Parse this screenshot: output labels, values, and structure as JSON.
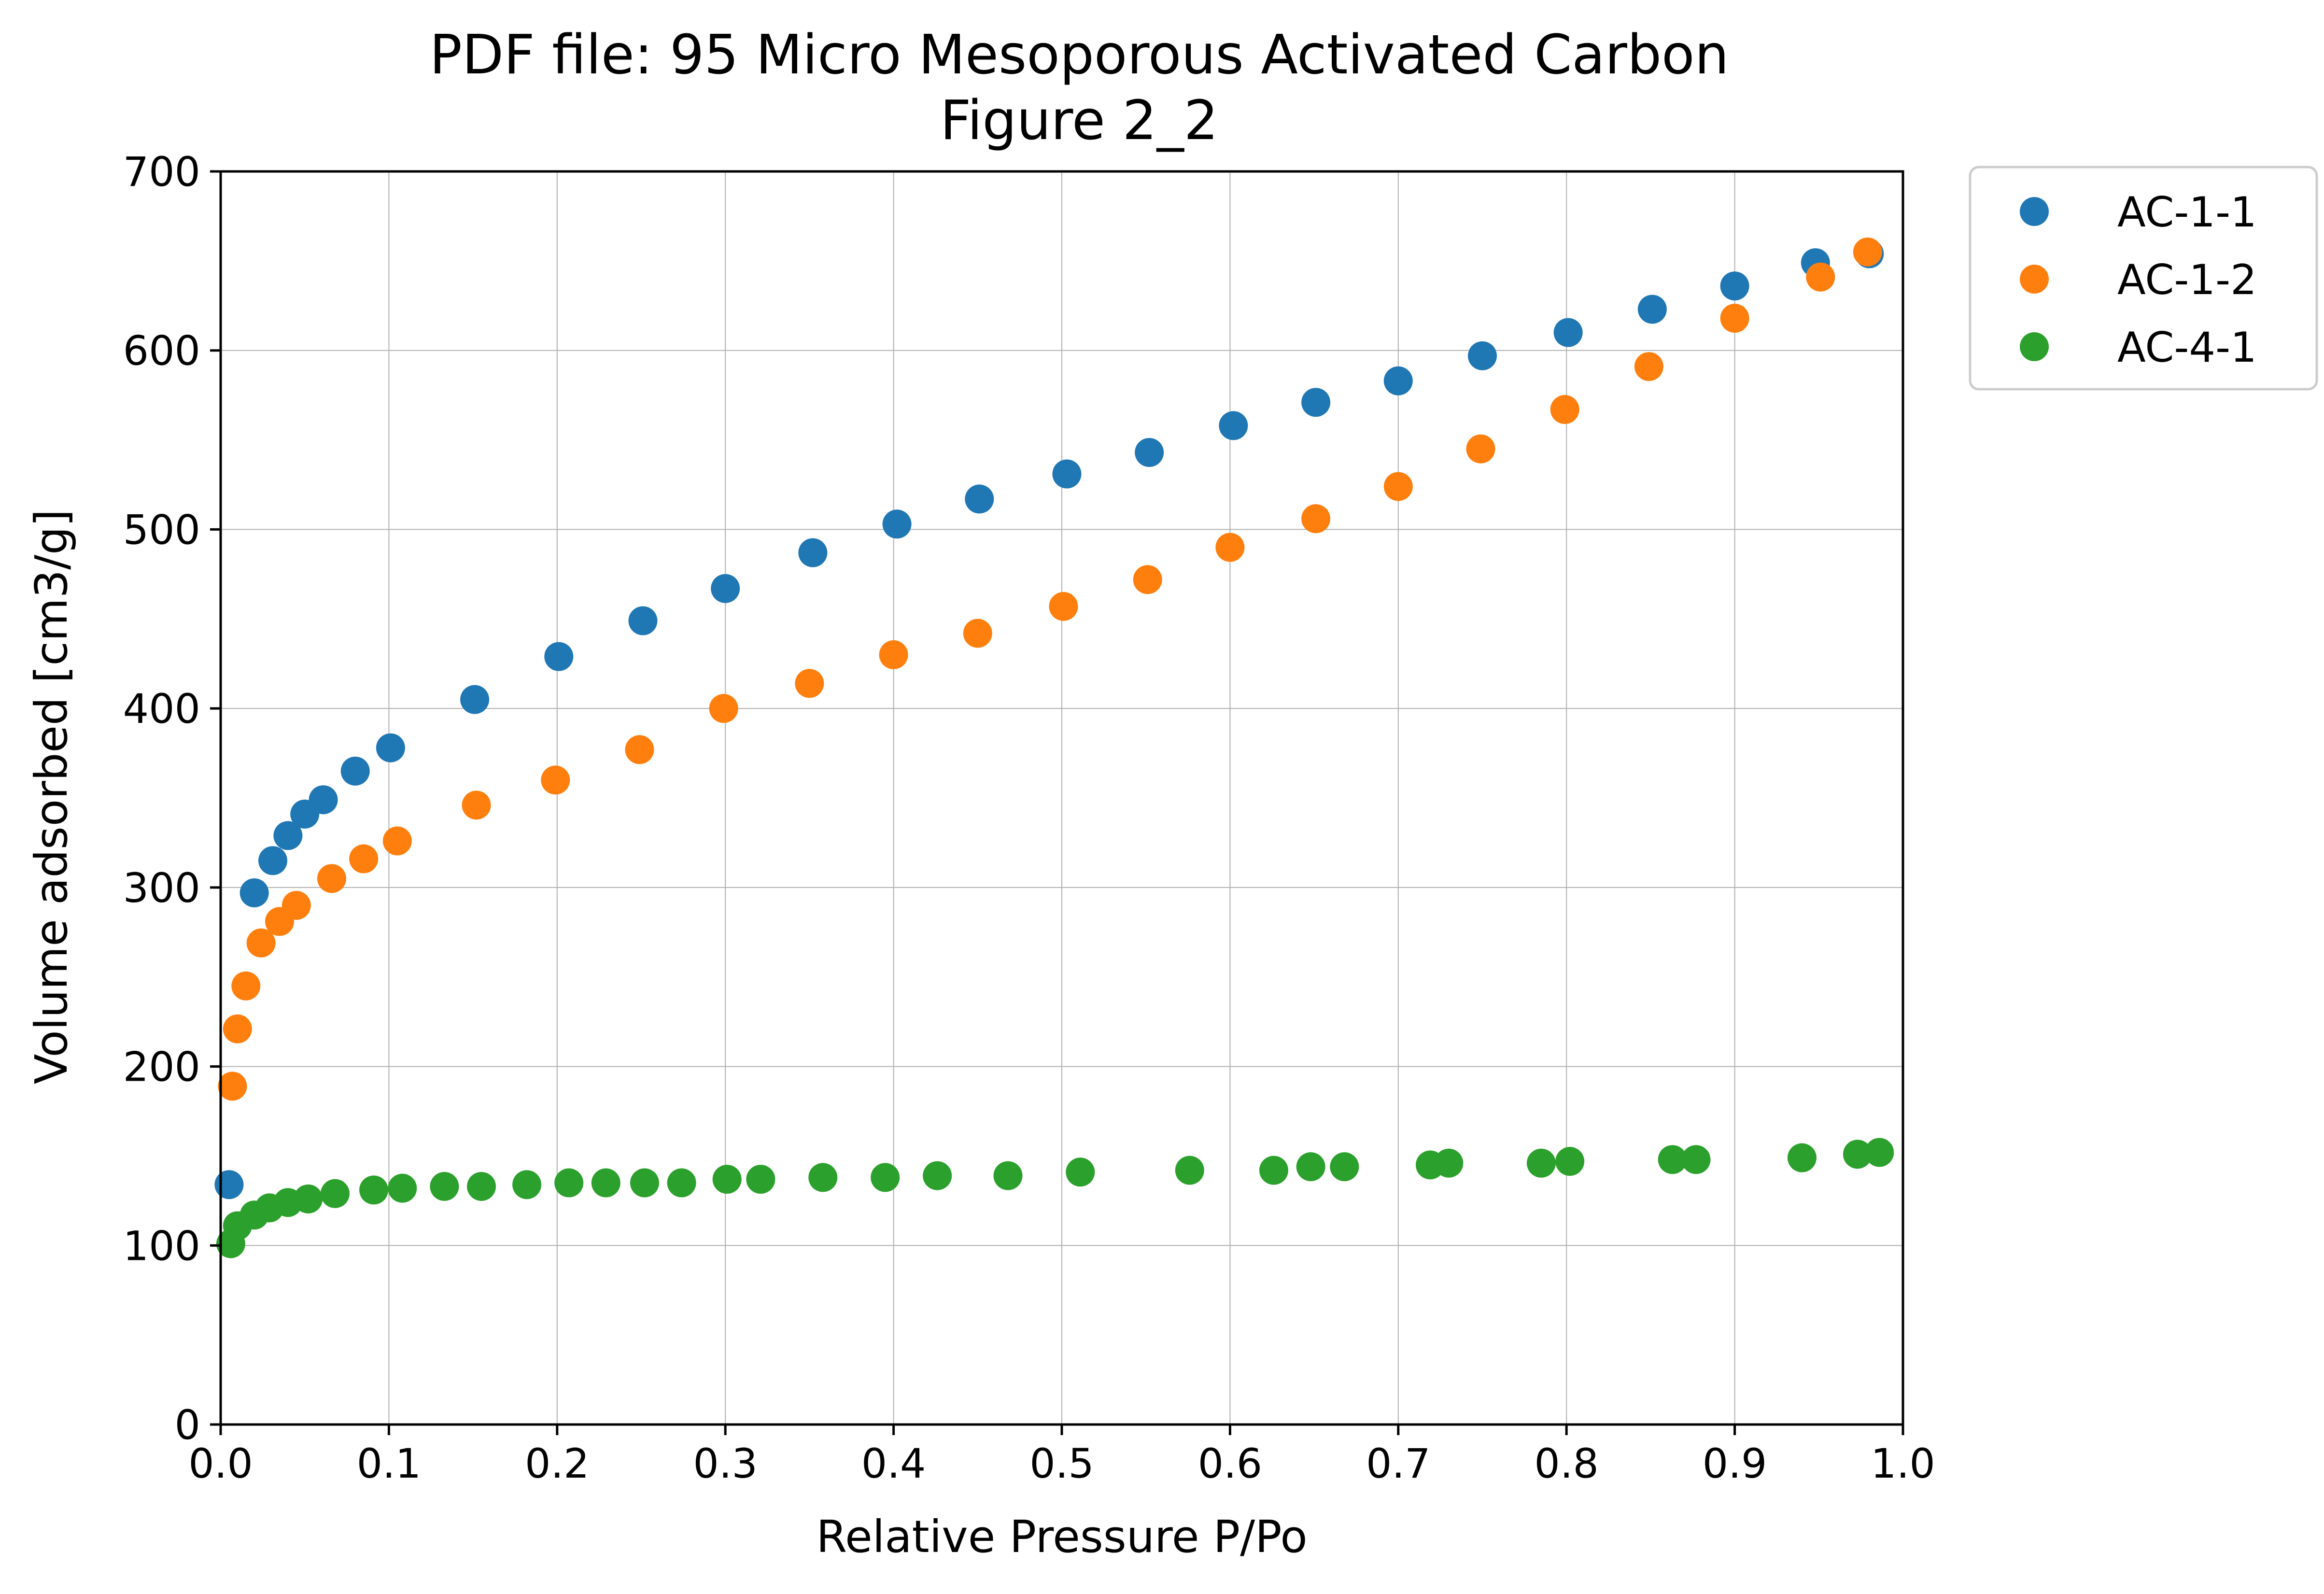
{
  "chart_data": {
    "type": "scatter",
    "title": "PDF file: 95 Micro Mesoporous Activated Carbon",
    "subtitle": "Figure 2_2",
    "xlabel": "Relative Pressure P/Po",
    "ylabel": "Volume adsorbed [cm3/g]",
    "xlim": [
      0.0,
      1.0
    ],
    "ylim": [
      0,
      700
    ],
    "xticks": [
      "0.0",
      "0.1",
      "0.2",
      "0.3",
      "0.4",
      "0.5",
      "0.6",
      "0.7",
      "0.8",
      "0.9",
      "1.0"
    ],
    "yticks": [
      "0",
      "100",
      "200",
      "300",
      "400",
      "500",
      "600",
      "700"
    ],
    "grid": true,
    "legend_position": "outside-top-right",
    "series": [
      {
        "name": "AC-1-1",
        "color": "#1f77b4",
        "x": [
          0.005,
          0.02,
          0.031,
          0.04,
          0.05,
          0.061,
          0.08,
          0.101,
          0.151,
          0.201,
          0.251,
          0.3,
          0.352,
          0.402,
          0.451,
          0.503,
          0.552,
          0.602,
          0.651,
          0.7,
          0.75,
          0.801,
          0.851,
          0.9,
          0.948,
          0.98
        ],
        "y": [
          134,
          297,
          315,
          329,
          341,
          349,
          365,
          378,
          405,
          429,
          449,
          467,
          487,
          503,
          517,
          531,
          543,
          558,
          571,
          583,
          597,
          610,
          623,
          636,
          649,
          654
        ]
      },
      {
        "name": "AC-1-2",
        "color": "#ff7f0e",
        "x": [
          0.007,
          0.01,
          0.015,
          0.024,
          0.035,
          0.045,
          0.066,
          0.085,
          0.105,
          0.152,
          0.199,
          0.249,
          0.299,
          0.35,
          0.4,
          0.45,
          0.501,
          0.551,
          0.6,
          0.651,
          0.7,
          0.749,
          0.799,
          0.849,
          0.9,
          0.951,
          0.979
        ],
        "y": [
          189,
          221,
          245,
          269,
          281,
          290,
          305,
          316,
          326,
          346,
          360,
          377,
          400,
          414,
          430,
          442,
          457,
          472,
          490,
          506,
          524,
          545,
          567,
          591,
          618,
          641,
          655
        ]
      },
      {
        "name": "AC-4-1",
        "color": "#2ca02c",
        "x": [
          0.006,
          0.01,
          0.02,
          0.029,
          0.04,
          0.052,
          0.068,
          0.091,
          0.108,
          0.133,
          0.155,
          0.182,
          0.207,
          0.229,
          0.252,
          0.274,
          0.301,
          0.321,
          0.358,
          0.395,
          0.426,
          0.468,
          0.511,
          0.576,
          0.626,
          0.648,
          0.668,
          0.719,
          0.73,
          0.785,
          0.802,
          0.863,
          0.877,
          0.94,
          0.973,
          0.986
        ],
        "y": [
          101,
          111,
          117,
          121,
          124,
          126,
          129,
          131,
          132,
          133,
          133,
          134,
          135,
          135,
          135,
          135,
          137,
          137,
          138,
          138,
          139,
          139,
          141,
          142,
          142,
          144,
          144,
          145,
          146,
          146,
          147,
          148,
          148,
          149,
          151,
          152
        ]
      }
    ]
  }
}
